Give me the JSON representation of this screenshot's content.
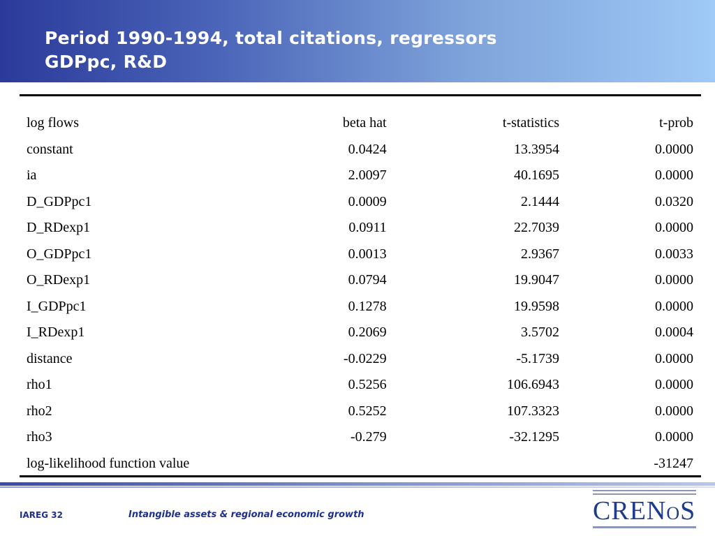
{
  "slide": {
    "title_line1": "Period 1990-1994, total citations, regressors",
    "title_line2": "GDPpc, R&D"
  },
  "table": {
    "headers": [
      "log flows",
      "beta hat",
      "t-statistics",
      "t-prob"
    ],
    "rows": [
      [
        "constant",
        "0.0424",
        "13.3954",
        "0.0000"
      ],
      [
        "ia",
        "2.0097",
        "40.1695",
        "0.0000"
      ],
      [
        "D_GDPpc1",
        "0.0009",
        "2.1444",
        "0.0320"
      ],
      [
        "D_RDexp1",
        "0.0911",
        "22.7039",
        "0.0000"
      ],
      [
        "O_GDPpc1",
        "0.0013",
        "2.9367",
        "0.0033"
      ],
      [
        "O_RDexp1",
        "0.0794",
        "19.9047",
        "0.0000"
      ],
      [
        "I_GDPpc1",
        "0.1278",
        "19.9598",
        "0.0000"
      ],
      [
        "I_RDexp1",
        "0.2069",
        "3.5702",
        "0.0004"
      ],
      [
        "distance",
        "-0.0229",
        "-5.1739",
        "0.0000"
      ],
      [
        "rho1",
        "0.5256",
        "106.6943",
        "0.0000"
      ],
      [
        "rho2",
        "0.5252",
        "107.3323",
        "0.0000"
      ],
      [
        "rho3",
        "-0.279",
        "-32.1295",
        "0.0000"
      ],
      [
        "log-likelihood function value",
        "",
        "",
        "-31247"
      ]
    ]
  },
  "footer": {
    "slide_number": "IAREG 32",
    "presentation_title": "Intangible assets & regional economic growth",
    "logo_text_main": "CREN",
    "logo_text_small": "O",
    "logo_text_end": "S"
  },
  "colors": {
    "title_text": "#ffffff",
    "header_gradient_start": "#2b3a9a",
    "header_gradient_end": "#9fc9f6",
    "footer_text": "#1e2f8c",
    "logo_text": "#1f3b8c"
  }
}
